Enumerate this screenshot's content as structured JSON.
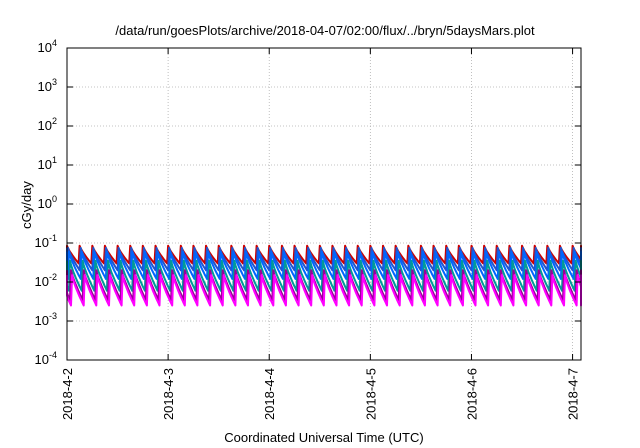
{
  "chart_data": {
    "type": "line",
    "title": "/data/run/goesPlots/archive/2018-04-07/02:00/flux/../bryn/5daysMars.plot",
    "xlabel": "Coordinated Universal Time (UTC)",
    "ylabel": "cGy/day",
    "y_scale": "log",
    "ylim": [
      0.0001,
      10000
    ],
    "xlim": [
      "2018-04-02 00:00",
      "2018-04-07 02:00"
    ],
    "y_ticks": [
      {
        "value": 0.0001,
        "base": "10",
        "exp": "-4"
      },
      {
        "value": 0.001,
        "base": "10",
        "exp": "-3"
      },
      {
        "value": 0.01,
        "base": "10",
        "exp": "-2"
      },
      {
        "value": 0.1,
        "base": "10",
        "exp": "-1"
      },
      {
        "value": 1,
        "base": "10",
        "exp": "0"
      },
      {
        "value": 10,
        "base": "10",
        "exp": "1"
      },
      {
        "value": 100,
        "base": "10",
        "exp": "2"
      },
      {
        "value": 1000,
        "base": "10",
        "exp": "3"
      },
      {
        "value": 10000,
        "base": "10",
        "exp": "4"
      }
    ],
    "x_ticks": [
      {
        "value": "2018-04-02 00:00",
        "label": "2018-4-2"
      },
      {
        "value": "2018-04-03 00:00",
        "label": "2018-4-3"
      },
      {
        "value": "2018-04-04 00:00",
        "label": "2018-4-4"
      },
      {
        "value": "2018-04-05 00:00",
        "label": "2018-4-5"
      },
      {
        "value": "2018-04-06 00:00",
        "label": "2018-4-6"
      },
      {
        "value": "2018-04-07 00:00",
        "label": "2018-4-7"
      }
    ],
    "grid": true,
    "legend": "none",
    "pattern": {
      "period_hours": 3,
      "description_values": "sawtooth: sharp rise every ~3 hours then decay"
    },
    "series": [
      {
        "color": "#cc0000",
        "peak": 0.085,
        "trough": 0.03
      },
      {
        "color": "#2255cc",
        "peak": 0.075,
        "trough": 0.02
      },
      {
        "color": "#0066ff",
        "peak": 0.06,
        "trough": 0.012
      },
      {
        "color": "#009999",
        "peak": 0.035,
        "trough": 0.006
      },
      {
        "color": "#990099",
        "peak": 0.02,
        "trough": 0.0035
      },
      {
        "color": "#ff00ff",
        "peak": 0.015,
        "trough": 0.0025
      }
    ]
  }
}
